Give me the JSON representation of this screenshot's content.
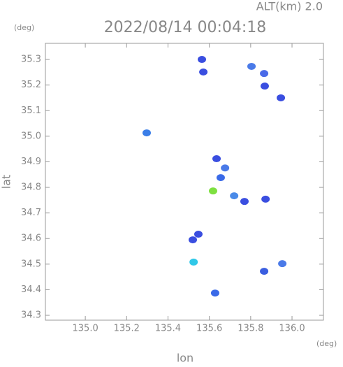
{
  "chart_data": {
    "type": "scatter",
    "title": "2022/08/14 00:04:18",
    "subtitle": "ALT(km) 2.0",
    "x_unit": "(deg)",
    "y_unit": "(deg)",
    "x_label": "lon",
    "y_label": "lat",
    "xlim": [
      134.807,
      136.152
    ],
    "ylim": [
      34.281,
      35.363
    ],
    "xticks": [
      {
        "value": 135.0,
        "label": "135.0"
      },
      135.2,
      135.4,
      135.6,
      135.8,
      {
        "value": 136.0,
        "label": "136.0"
      }
    ],
    "yticks": [
      34.3,
      34.4,
      34.5,
      34.6,
      34.7,
      34.8,
      34.9,
      {
        "value": 35.0,
        "label": "35.0"
      },
      35.1,
      35.2,
      35.3
    ],
    "x": [
      135.564,
      135.571,
      135.804,
      135.865,
      135.946,
      135.868,
      135.297,
      135.635,
      135.676,
      135.655,
      135.618,
      135.72,
      135.872,
      135.77,
      135.547,
      135.52,
      135.524,
      135.865,
      135.953,
      135.628
    ],
    "y": [
      35.3,
      35.251,
      35.273,
      35.245,
      35.15,
      35.196,
      35.013,
      34.912,
      34.876,
      34.838,
      34.786,
      34.767,
      34.754,
      34.745,
      34.617,
      34.595,
      34.508,
      34.472,
      34.502,
      34.387
    ],
    "colors": [
      "#3a4ee0",
      "#3a4ee0",
      "#4a7ae8",
      "#4a6ae8",
      "#3a4ee0",
      "#3a4ee0",
      "#3a7ee8",
      "#3a4ee0",
      "#4a7ae8",
      "#3a6ae8",
      "#7ee040",
      "#4a8ae8",
      "#3a4ee0",
      "#3a4ee0",
      "#3a4ee0",
      "#3a4ee0",
      "#30c8e8",
      "#3a5ee0",
      "#4a7ae8",
      "#3a6ae8"
    ]
  }
}
